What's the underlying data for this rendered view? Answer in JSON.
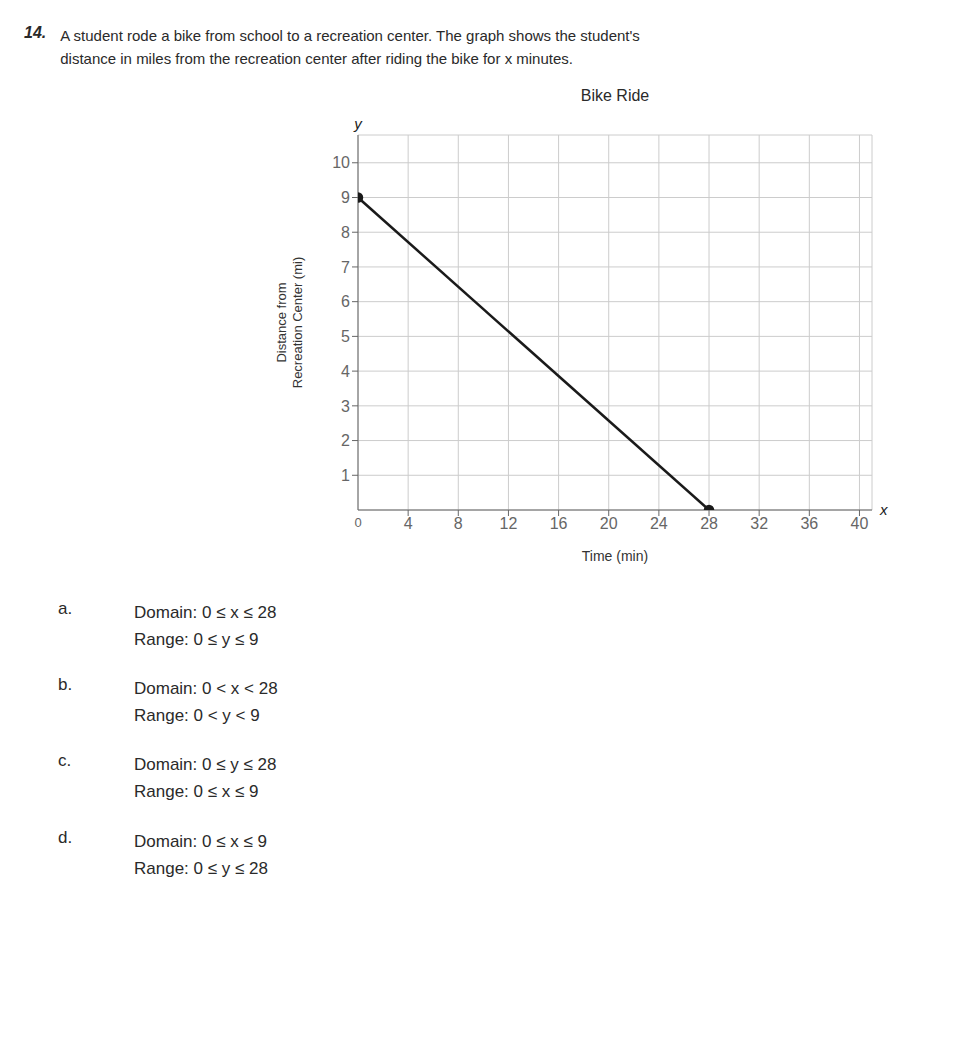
{
  "chart_data": {
    "type": "line",
    "title": "Bike Ride",
    "xlabel": "Time (min)",
    "ylabel": "Distance from\nRecreation Center (mi)",
    "x": [
      0,
      28
    ],
    "values": [
      9,
      0
    ],
    "color": "#1a1a1a",
    "marker": "circle",
    "xlim": [
      0,
      41
    ],
    "ylim": [
      0,
      10.8
    ],
    "xticks": [
      4,
      8,
      12,
      16,
      20,
      24,
      28,
      32,
      36,
      40
    ],
    "yticks": [
      1,
      2,
      3,
      4,
      5,
      6,
      7,
      8,
      9,
      10
    ],
    "grid": true,
    "x_symbol": "x",
    "y_symbol": "y",
    "origin_label": "0",
    "question_number": "14.",
    "question_text": "A student rode a bike from school to a recreation center. The graph shows the student's\ndistance in miles from the recreation center after riding the bike for x minutes.",
    "answer_choices": [
      {
        "label": "a.",
        "lines": [
          "Domain: 0 ≤ x ≤ 28",
          "Range: 0 ≤ y ≤ 9"
        ]
      },
      {
        "label": "b.",
        "lines": [
          "Domain: 0 < x < 28",
          "Range: 0 < y < 9"
        ]
      },
      {
        "label": "c.",
        "lines": [
          "Domain: 0 ≤ y ≤ 28",
          "Range: 0 ≤ x ≤ 9"
        ]
      },
      {
        "label": "d.",
        "lines": [
          "Domain: 0 ≤ x ≤ 9",
          "Range: 0 ≤ y ≤ 28"
        ]
      }
    ]
  }
}
